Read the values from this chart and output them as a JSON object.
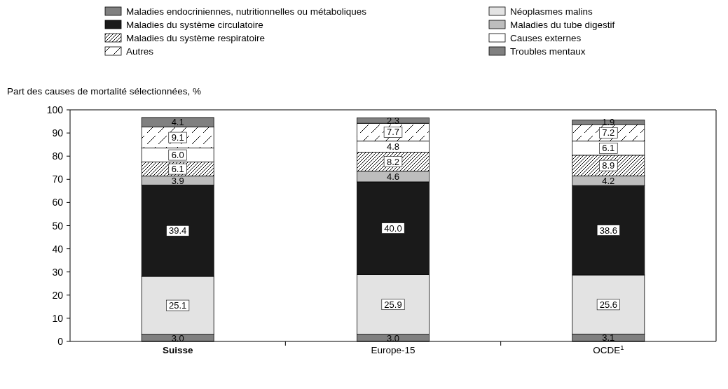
{
  "chart_data": {
    "type": "bar",
    "stacked": true,
    "ylabel": "Part des causes de mortalité sélectionnées, %",
    "categories": [
      "Suisse",
      "Europe-15",
      "OCDE$^{1}$"
    ],
    "series": [
      {
        "name": "Maladies endocriniennes, nutritionnelles ou métaboliques",
        "color": "#808080",
        "values": [
          3.0,
          3.0,
          3.1
        ],
        "value_labels": [
          "3.0",
          "3.0",
          "3.1"
        ]
      },
      {
        "name": "Néoplasmes malins",
        "color": "#e3e3e3",
        "values": [
          25.1,
          25.9,
          25.6
        ],
        "value_labels": [
          "25.1",
          "25.9",
          "25.6"
        ]
      },
      {
        "name": "Maladies du système circulatoire",
        "color": "#1a1a1a",
        "values": [
          39.4,
          40.0,
          38.6
        ],
        "value_labels": [
          "39.4",
          "40.0",
          "38.6"
        ]
      },
      {
        "name": "Maladies du tube digestif",
        "color": "#bdbdbd",
        "values": [
          3.9,
          4.6,
          4.2
        ],
        "value_labels": [
          "3.9",
          "4.6",
          "4.2"
        ]
      },
      {
        "name": "Maladies du système respiratoire",
        "color": "#000000",
        "values": [
          6.1,
          8.2,
          8.9
        ],
        "value_labels": [
          "6.1",
          "8.2",
          "8.9"
        ]
      },
      {
        "name": "Causes externes",
        "color": "#ffffff",
        "values": [
          6.0,
          4.8,
          6.1
        ],
        "value_labels": [
          "6.0",
          "4.8",
          "6.1"
        ]
      },
      {
        "name": "Autres",
        "color": "#000000",
        "values": [
          9.1,
          7.7,
          7.2
        ],
        "value_labels": [
          "9.1",
          "7.7",
          "7.2"
        ]
      },
      {
        "name": "Troubles mentaux",
        "color": "#808080",
        "values": [
          4.1,
          2.3,
          1.9
        ],
        "value_labels": [
          "4.1",
          "2.3",
          "1.9"
        ]
      }
    ],
    "ylim": [
      0,
      100
    ],
    "yticks": [
      0,
      10,
      20,
      30,
      40,
      50,
      60,
      70,
      80,
      90,
      100
    ],
    "legend": "top"
  }
}
